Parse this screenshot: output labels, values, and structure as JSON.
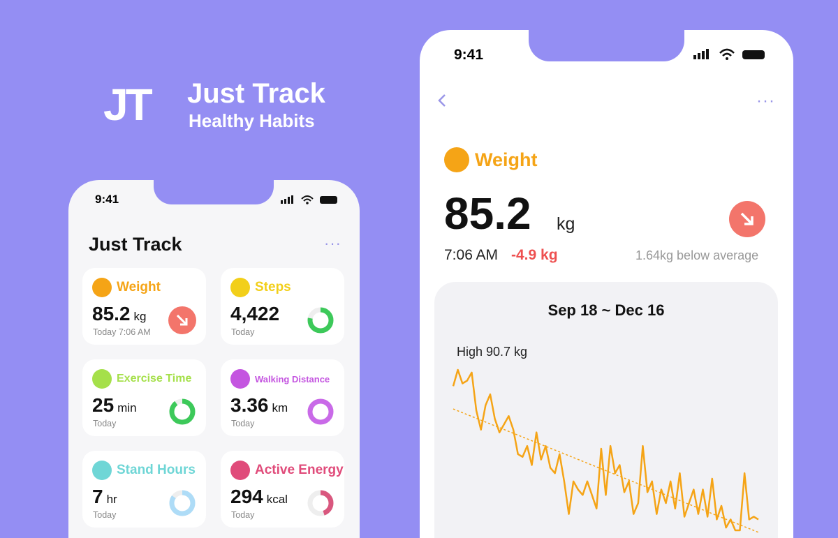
{
  "brand": {
    "logo": "JT",
    "name": "Just Track",
    "tagline": "Healthy Habits"
  },
  "left_phone": {
    "status_time": "9:41",
    "title": "Just Track",
    "cards": [
      {
        "title": "Weight",
        "value": "85.2",
        "unit": "kg",
        "caption": "Today 7:06 AM"
      },
      {
        "title": "Steps",
        "value": "4,422",
        "caption": "Today"
      },
      {
        "title": "Exercise Time",
        "value": "25",
        "unit": "min",
        "caption": "Today"
      },
      {
        "title": "Walking Distance",
        "value": "3.36",
        "unit": "km",
        "caption": "Today"
      },
      {
        "title": "Stand Hours",
        "value": "7",
        "unit": "hr",
        "caption": "Today"
      },
      {
        "title": "Active Energy",
        "value": "294",
        "unit": "kcal",
        "caption": "Today"
      }
    ]
  },
  "right_phone": {
    "status_time": "9:41",
    "metric": "Weight",
    "value": "85.2",
    "unit": "kg",
    "time": "7:06 AM",
    "change": "-4.9 kg",
    "note": "1.64kg below average",
    "chart": {
      "type": "line",
      "range": "Sep 18 ~ Dec 16",
      "high_label": "High 90.7 kg",
      "values": [
        90.1,
        90.7,
        90.2,
        90.3,
        90.6,
        89.2,
        88.5,
        89.4,
        89.8,
        88.9,
        88.4,
        88.7,
        89.0,
        88.5,
        87.6,
        87.5,
        87.9,
        87.2,
        88.4,
        87.4,
        87.9,
        87.1,
        86.9,
        87.6,
        86.6,
        85.4,
        86.6,
        86.3,
        86.1,
        86.6,
        86.1,
        85.6,
        87.8,
        86.1,
        87.9,
        86.9,
        87.2,
        86.2,
        86.6,
        85.4,
        85.8,
        87.9,
        86.2,
        86.6,
        85.4,
        86.3,
        85.8,
        86.6,
        85.6,
        86.9,
        85.3,
        85.8,
        86.3,
        85.4,
        86.3,
        85.3,
        86.7,
        85.2,
        85.7,
        84.9,
        85.2,
        84.8,
        84.8,
        86.9,
        85.2,
        85.3,
        85.2
      ]
    }
  }
}
